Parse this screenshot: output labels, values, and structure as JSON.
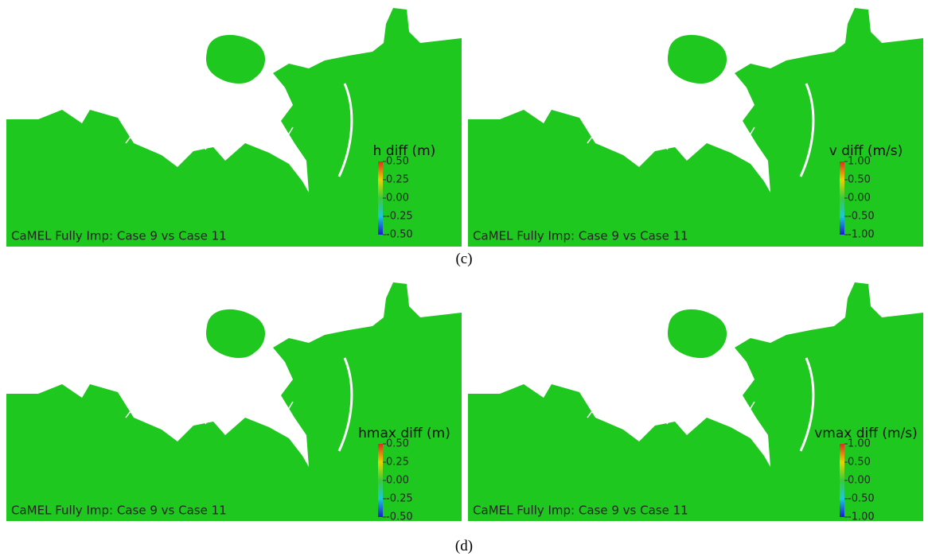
{
  "panels": [
    {
      "colorbar_title": "h diff (m)",
      "colorbar_ticks": [
        "0.50",
        "0.25",
        "0.00",
        "-0.25",
        "-0.50"
      ],
      "caption": "CaMEL Fully Imp: Case 9 vs Case 11"
    },
    {
      "colorbar_title": "v diff (m/s)",
      "colorbar_ticks": [
        "1.00",
        "0.50",
        "0.00",
        "-0.50",
        "-1.00"
      ],
      "caption": "CaMEL Fully Imp: Case 9 vs Case 11"
    },
    {
      "colorbar_title": "hmax diff (m)",
      "colorbar_ticks": [
        "0.50",
        "0.25",
        "0.00",
        "-0.25",
        "-0.50"
      ],
      "caption": "CaMEL Fully Imp: Case 9 vs Case 11"
    },
    {
      "colorbar_title": "vmax diff (m/s)",
      "colorbar_ticks": [
        "1.00",
        "0.50",
        "0.00",
        "-0.50",
        "-1.00"
      ],
      "caption": "CaMEL Fully Imp: Case 9 vs Case 11"
    }
  ],
  "subfigure_labels": [
    "(c)",
    "(d)"
  ]
}
